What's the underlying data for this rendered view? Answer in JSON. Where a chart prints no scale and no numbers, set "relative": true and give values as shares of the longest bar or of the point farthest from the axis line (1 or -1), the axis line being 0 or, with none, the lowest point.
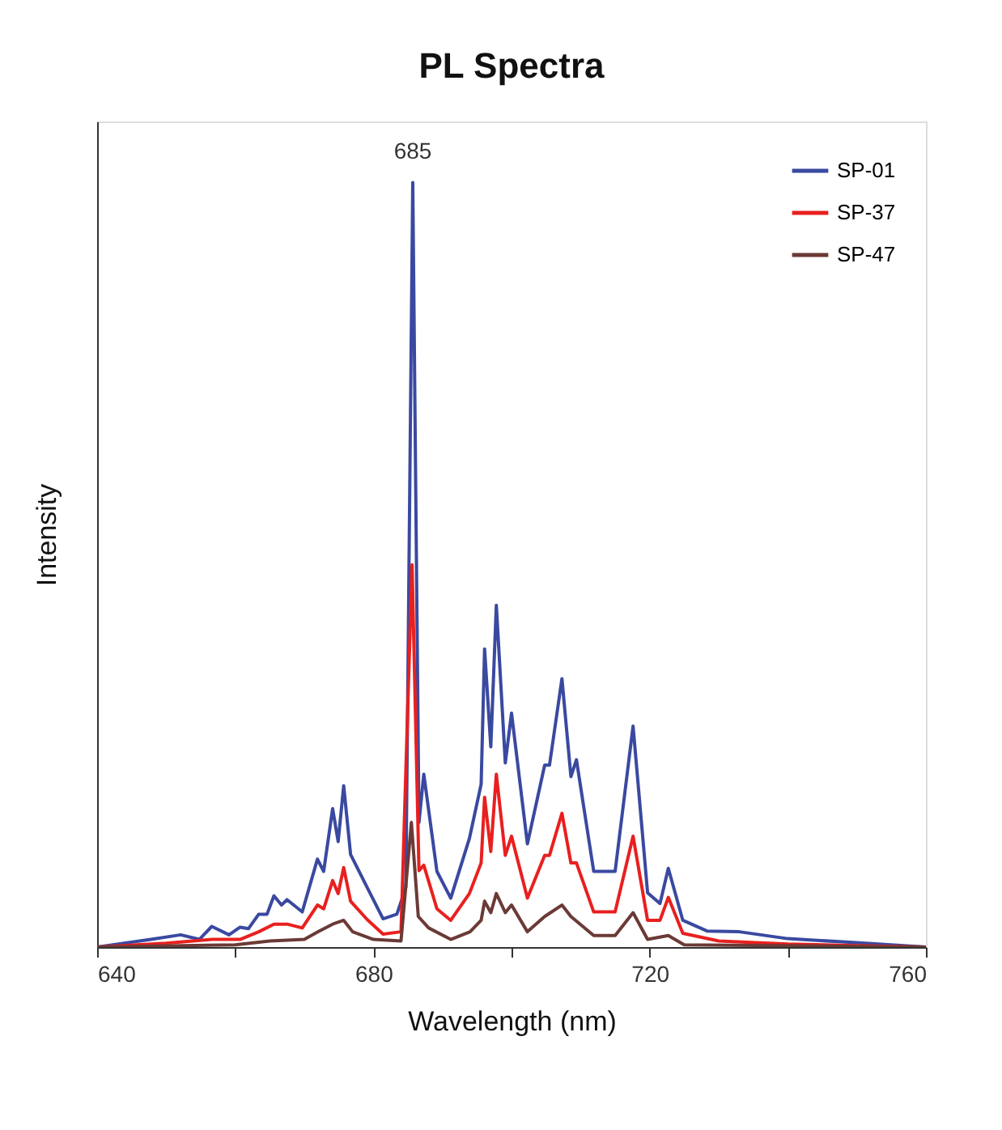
{
  "chart_data": {
    "type": "line",
    "title": "PL Spectra",
    "xlabel": "Wavelength (nm)",
    "ylabel": "Intensity",
    "relative": true,
    "xlim": [
      640,
      760
    ],
    "xticks": [
      640,
      {
        "value": 660,
        "label": null
      },
      680,
      {
        "value": 700,
        "label": null
      },
      720,
      {
        "value": 740,
        "label": null
      },
      760
    ],
    "legend": "top right",
    "grid": false,
    "marker": "none",
    "line_style": "solid",
    "annotations": [
      {
        "text": "685",
        "x": 685.7,
        "y": 1.0
      }
    ],
    "series": [
      {
        "name": "SP-01",
        "color": "#3a49a0",
        "x": [
          640,
          647.8,
          652.1,
          654.8,
          656.6,
          659.1,
          660.7,
          661.9,
          663.4,
          664.6,
          665.6,
          666.7,
          667.5,
          669.7,
          671.9,
          672.8,
          674.1,
          674.9,
          675.7,
          676.7,
          679.1,
          681.4,
          683.4,
          684.7,
          685.7,
          686.6,
          687.3,
          689.2,
          691.2,
          693.9,
          695.6,
          696.1,
          697.0,
          697.8,
          699.1,
          700.0,
          702.3,
          704.8,
          705.5,
          707.3,
          708.6,
          709.4,
          711.9,
          715,
          717.6,
          719.7,
          721.5,
          722.7,
          724.8,
          728.3,
          733,
          740,
          749.4,
          760
        ],
        "values": [
          0,
          0.01,
          0.016,
          0.01,
          0.027,
          0.016,
          0.026,
          0.024,
          0.043,
          0.043,
          0.067,
          0.055,
          0.062,
          0.046,
          0.115,
          0.099,
          0.181,
          0.138,
          0.211,
          0.121,
          0.078,
          0.037,
          0.043,
          0.078,
          1.0,
          0.163,
          0.226,
          0.099,
          0.064,
          0.142,
          0.213,
          0.39,
          0.262,
          0.447,
          0.241,
          0.306,
          0.135,
          0.238,
          0.238,
          0.351,
          0.223,
          0.245,
          0.099,
          0.099,
          0.289,
          0.071,
          0.057,
          0.103,
          0.035,
          0.021,
          0.02,
          0.011,
          0.006,
          0
        ]
      },
      {
        "name": "SP-37",
        "color": "#e8201f",
        "x": [
          640,
          650,
          656.6,
          660.7,
          663.4,
          665.6,
          667.5,
          669.7,
          671.9,
          672.8,
          674.1,
          674.9,
          675.7,
          676.7,
          679.1,
          681.4,
          684.0,
          685.6,
          686.6,
          687.3,
          689.2,
          691.2,
          693.9,
          695.6,
          696.1,
          697.0,
          697.8,
          699.1,
          700.0,
          702.3,
          704.8,
          705.5,
          707.3,
          708.6,
          709.4,
          711.9,
          715,
          717.6,
          719.7,
          721.5,
          722.7,
          724.8,
          730,
          740,
          760
        ],
        "values": [
          0,
          0.005,
          0.01,
          0.01,
          0.02,
          0.03,
          0.03,
          0.025,
          0.055,
          0.05,
          0.087,
          0.07,
          0.104,
          0.06,
          0.036,
          0.017,
          0.02,
          0.5,
          0.1,
          0.107,
          0.05,
          0.035,
          0.07,
          0.11,
          0.196,
          0.125,
          0.226,
          0.12,
          0.145,
          0.064,
          0.12,
          0.12,
          0.175,
          0.11,
          0.11,
          0.046,
          0.046,
          0.145,
          0.035,
          0.035,
          0.065,
          0.018,
          0.008,
          0.004,
          0
        ]
      },
      {
        "name": "SP-47",
        "color": "#6b3a36",
        "x": [
          640,
          660,
          665,
          670,
          672,
          674.1,
          675.7,
          677,
          680,
          684,
          685.5,
          686.5,
          688,
          691.2,
          694,
          695.6,
          696.1,
          697,
          697.8,
          699.1,
          700,
          702.3,
          704.8,
          707.3,
          708.6,
          711.9,
          715,
          717.6,
          719.7,
          722.7,
          725,
          760
        ],
        "values": [
          0,
          0.003,
          0.008,
          0.01,
          0.02,
          0.03,
          0.035,
          0.02,
          0.01,
          0.008,
          0.163,
          0.04,
          0.025,
          0.01,
          0.02,
          0.035,
          0.06,
          0.045,
          0.07,
          0.045,
          0.055,
          0.02,
          0.04,
          0.055,
          0.04,
          0.015,
          0.015,
          0.045,
          0.01,
          0.015,
          0.003,
          0
        ]
      }
    ]
  }
}
